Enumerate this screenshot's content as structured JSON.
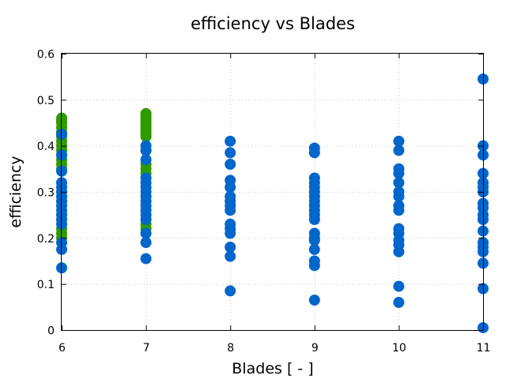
{
  "chart_data": {
    "type": "scatter",
    "title": "efficiency vs Blades",
    "xlabel": "Blades [ - ]",
    "ylabel": "efficiency",
    "xlim": [
      6,
      11
    ],
    "ylim": [
      0,
      0.6
    ],
    "xticks": [
      "6",
      "7",
      "8",
      "9",
      "10",
      "11"
    ],
    "yticks": [
      "0",
      "0.1",
      "0.2",
      "0.3",
      "0.4",
      "0.5",
      "0.6"
    ],
    "grid": true,
    "legend": "none",
    "colors": {
      "green": "#2e9a00",
      "blue": "#0066cc"
    },
    "series": [
      {
        "color": "green",
        "points": [
          [
            6,
            0.46
          ],
          [
            6,
            0.455
          ],
          [
            6,
            0.45
          ],
          [
            6,
            0.44
          ],
          [
            6,
            0.43
          ],
          [
            6,
            0.42
          ],
          [
            6,
            0.41
          ],
          [
            6,
            0.4
          ],
          [
            6,
            0.39
          ],
          [
            6,
            0.38
          ],
          [
            6,
            0.37
          ],
          [
            6,
            0.36
          ],
          [
            6,
            0.35
          ],
          [
            6,
            0.22
          ],
          [
            6,
            0.21
          ],
          [
            6,
            0.2
          ],
          [
            7,
            0.47
          ],
          [
            7,
            0.465
          ],
          [
            7,
            0.46
          ],
          [
            7,
            0.455
          ],
          [
            7,
            0.45
          ],
          [
            7,
            0.445
          ],
          [
            7,
            0.44
          ],
          [
            7,
            0.435
          ],
          [
            7,
            0.43
          ],
          [
            7,
            0.425
          ],
          [
            7,
            0.42
          ],
          [
            7,
            0.39
          ],
          [
            7,
            0.36
          ],
          [
            7,
            0.35
          ],
          [
            7,
            0.34
          ],
          [
            7,
            0.23
          ],
          [
            7,
            0.22
          ]
        ]
      },
      {
        "color": "blue",
        "points": [
          [
            6,
            0.425
          ],
          [
            6,
            0.38
          ],
          [
            6,
            0.345
          ],
          [
            6,
            0.32
          ],
          [
            6,
            0.31
          ],
          [
            6,
            0.3
          ],
          [
            6,
            0.29
          ],
          [
            6,
            0.28
          ],
          [
            6,
            0.27
          ],
          [
            6,
            0.26
          ],
          [
            6,
            0.25
          ],
          [
            6,
            0.24
          ],
          [
            6,
            0.23
          ],
          [
            6,
            0.19
          ],
          [
            6,
            0.175
          ],
          [
            6,
            0.135
          ],
          [
            7,
            0.4
          ],
          [
            7,
            0.39
          ],
          [
            7,
            0.37
          ],
          [
            7,
            0.33
          ],
          [
            7,
            0.32
          ],
          [
            7,
            0.31
          ],
          [
            7,
            0.3
          ],
          [
            7,
            0.29
          ],
          [
            7,
            0.28
          ],
          [
            7,
            0.27
          ],
          [
            7,
            0.26
          ],
          [
            7,
            0.25
          ],
          [
            7,
            0.24
          ],
          [
            7,
            0.21
          ],
          [
            7,
            0.19
          ],
          [
            7,
            0.155
          ],
          [
            8,
            0.41
          ],
          [
            8,
            0.385
          ],
          [
            8,
            0.36
          ],
          [
            8,
            0.325
          ],
          [
            8,
            0.31
          ],
          [
            8,
            0.29
          ],
          [
            8,
            0.28
          ],
          [
            8,
            0.27
          ],
          [
            8,
            0.26
          ],
          [
            8,
            0.23
          ],
          [
            8,
            0.22
          ],
          [
            8,
            0.21
          ],
          [
            8,
            0.18
          ],
          [
            8,
            0.16
          ],
          [
            8,
            0.085
          ],
          [
            9,
            0.395
          ],
          [
            9,
            0.385
          ],
          [
            9,
            0.33
          ],
          [
            9,
            0.32
          ],
          [
            9,
            0.31
          ],
          [
            9,
            0.3
          ],
          [
            9,
            0.29
          ],
          [
            9,
            0.28
          ],
          [
            9,
            0.27
          ],
          [
            9,
            0.26
          ],
          [
            9,
            0.25
          ],
          [
            9,
            0.24
          ],
          [
            9,
            0.21
          ],
          [
            9,
            0.2
          ],
          [
            9,
            0.195
          ],
          [
            9,
            0.175
          ],
          [
            9,
            0.15
          ],
          [
            9,
            0.14
          ],
          [
            9,
            0.065
          ],
          [
            10,
            0.41
          ],
          [
            10,
            0.39
          ],
          [
            10,
            0.35
          ],
          [
            10,
            0.34
          ],
          [
            10,
            0.32
          ],
          [
            10,
            0.3
          ],
          [
            10,
            0.29
          ],
          [
            10,
            0.27
          ],
          [
            10,
            0.26
          ],
          [
            10,
            0.22
          ],
          [
            10,
            0.21
          ],
          [
            10,
            0.195
          ],
          [
            10,
            0.185
          ],
          [
            10,
            0.17
          ],
          [
            10,
            0.095
          ],
          [
            10,
            0.06
          ],
          [
            11,
            0.545
          ],
          [
            11,
            0.4
          ],
          [
            11,
            0.38
          ],
          [
            11,
            0.34
          ],
          [
            11,
            0.32
          ],
          [
            11,
            0.31
          ],
          [
            11,
            0.3
          ],
          [
            11,
            0.275
          ],
          [
            11,
            0.265
          ],
          [
            11,
            0.25
          ],
          [
            11,
            0.24
          ],
          [
            11,
            0.215
          ],
          [
            11,
            0.19
          ],
          [
            11,
            0.18
          ],
          [
            11,
            0.17
          ],
          [
            11,
            0.145
          ],
          [
            11,
            0.09
          ],
          [
            11,
            0.005
          ]
        ]
      }
    ]
  }
}
